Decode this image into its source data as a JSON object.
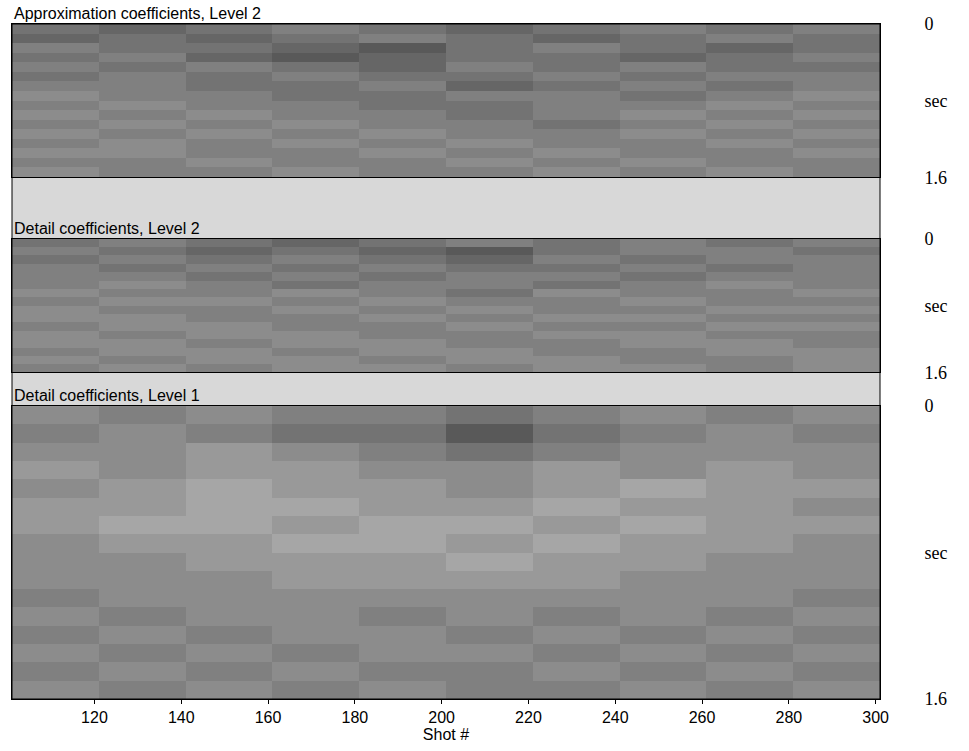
{
  "chart_data": {
    "type": "heatmap",
    "xlabel": "Shot #",
    "xlim": [
      101,
      301
    ],
    "xticks": [
      120,
      140,
      160,
      180,
      200,
      220,
      240,
      260,
      280,
      300
    ],
    "zlim": [
      0,
      1
    ],
    "grid": false,
    "panels": [
      {
        "title": "Approximation coefficients, Level 2",
        "ylim": [
          1.6,
          0
        ],
        "yticks": [
          0,
          {
            "value": 0.8,
            "label": "sec"
          },
          1.6
        ],
        "z": [
          [
            0.55,
            0.6,
            0.55,
            0.5,
            0.55,
            0.6,
            0.55,
            0.5,
            0.55,
            0.5
          ],
          [
            0.6,
            0.55,
            0.6,
            0.55,
            0.5,
            0.55,
            0.6,
            0.55,
            0.5,
            0.55
          ],
          [
            0.5,
            0.55,
            0.55,
            0.6,
            0.65,
            0.55,
            0.5,
            0.55,
            0.6,
            0.55
          ],
          [
            0.55,
            0.5,
            0.6,
            0.65,
            0.6,
            0.55,
            0.55,
            0.6,
            0.55,
            0.5
          ],
          [
            0.5,
            0.55,
            0.5,
            0.55,
            0.6,
            0.5,
            0.55,
            0.5,
            0.55,
            0.55
          ],
          [
            0.55,
            0.5,
            0.55,
            0.5,
            0.55,
            0.55,
            0.5,
            0.55,
            0.5,
            0.5
          ],
          [
            0.5,
            0.5,
            0.55,
            0.55,
            0.5,
            0.6,
            0.55,
            0.5,
            0.55,
            0.5
          ],
          [
            0.45,
            0.5,
            0.5,
            0.55,
            0.55,
            0.5,
            0.5,
            0.55,
            0.5,
            0.45
          ],
          [
            0.5,
            0.45,
            0.5,
            0.5,
            0.55,
            0.55,
            0.5,
            0.5,
            0.45,
            0.5
          ],
          [
            0.45,
            0.5,
            0.45,
            0.5,
            0.5,
            0.55,
            0.5,
            0.45,
            0.5,
            0.45
          ],
          [
            0.5,
            0.45,
            0.5,
            0.45,
            0.5,
            0.5,
            0.55,
            0.5,
            0.45,
            0.5
          ],
          [
            0.45,
            0.5,
            0.45,
            0.5,
            0.45,
            0.5,
            0.5,
            0.45,
            0.5,
            0.45
          ],
          [
            0.5,
            0.45,
            0.5,
            0.45,
            0.5,
            0.45,
            0.5,
            0.5,
            0.45,
            0.5
          ],
          [
            0.45,
            0.45,
            0.5,
            0.5,
            0.45,
            0.5,
            0.45,
            0.5,
            0.5,
            0.45
          ],
          [
            0.5,
            0.5,
            0.45,
            0.5,
            0.5,
            0.45,
            0.5,
            0.45,
            0.5,
            0.5
          ],
          [
            0.45,
            0.5,
            0.5,
            0.45,
            0.5,
            0.5,
            0.45,
            0.5,
            0.45,
            0.5
          ]
        ]
      },
      {
        "title": "Detail coefficients, Level 2",
        "ylim": [
          1.6,
          0
        ],
        "yticks": [
          0,
          {
            "value": 0.8,
            "label": "sec"
          },
          1.6
        ],
        "z": [
          [
            0.55,
            0.5,
            0.55,
            0.6,
            0.55,
            0.5,
            0.55,
            0.5,
            0.55,
            0.5
          ],
          [
            0.5,
            0.55,
            0.6,
            0.55,
            0.6,
            0.65,
            0.55,
            0.5,
            0.5,
            0.55
          ],
          [
            0.55,
            0.5,
            0.55,
            0.5,
            0.55,
            0.6,
            0.5,
            0.55,
            0.5,
            0.5
          ],
          [
            0.5,
            0.55,
            0.5,
            0.55,
            0.5,
            0.55,
            0.55,
            0.5,
            0.55,
            0.5
          ],
          [
            0.5,
            0.5,
            0.55,
            0.5,
            0.55,
            0.5,
            0.5,
            0.55,
            0.5,
            0.5
          ],
          [
            0.5,
            0.45,
            0.5,
            0.55,
            0.5,
            0.5,
            0.55,
            0.5,
            0.45,
            0.5
          ],
          [
            0.45,
            0.5,
            0.5,
            0.45,
            0.5,
            0.55,
            0.45,
            0.5,
            0.5,
            0.45
          ],
          [
            0.5,
            0.45,
            0.45,
            0.5,
            0.45,
            0.5,
            0.5,
            0.45,
            0.5,
            0.5
          ],
          [
            0.45,
            0.5,
            0.5,
            0.45,
            0.5,
            0.45,
            0.5,
            0.5,
            0.45,
            0.45
          ],
          [
            0.45,
            0.45,
            0.5,
            0.5,
            0.45,
            0.5,
            0.45,
            0.45,
            0.5,
            0.5
          ],
          [
            0.5,
            0.45,
            0.45,
            0.5,
            0.5,
            0.45,
            0.5,
            0.5,
            0.45,
            0.45
          ],
          [
            0.45,
            0.5,
            0.45,
            0.45,
            0.5,
            0.5,
            0.45,
            0.45,
            0.5,
            0.5
          ],
          [
            0.45,
            0.45,
            0.5,
            0.45,
            0.45,
            0.5,
            0.5,
            0.45,
            0.45,
            0.5
          ],
          [
            0.5,
            0.45,
            0.45,
            0.5,
            0.45,
            0.45,
            0.5,
            0.5,
            0.45,
            0.45
          ],
          [
            0.45,
            0.5,
            0.45,
            0.45,
            0.5,
            0.45,
            0.45,
            0.5,
            0.5,
            0.45
          ],
          [
            0.5,
            0.45,
            0.5,
            0.45,
            0.45,
            0.5,
            0.45,
            0.45,
            0.5,
            0.45
          ]
        ]
      },
      {
        "title": "Detail coefficients, Level 1",
        "ylim": [
          1.6,
          0
        ],
        "yticks": [
          0,
          {
            "value": 0.8,
            "label": "sec"
          },
          1.6
        ],
        "z": [
          [
            0.45,
            0.5,
            0.45,
            0.5,
            0.5,
            0.55,
            0.5,
            0.45,
            0.5,
            0.45
          ],
          [
            0.5,
            0.45,
            0.5,
            0.55,
            0.55,
            0.65,
            0.55,
            0.5,
            0.45,
            0.5
          ],
          [
            0.45,
            0.45,
            0.4,
            0.45,
            0.5,
            0.55,
            0.5,
            0.45,
            0.45,
            0.45
          ],
          [
            0.4,
            0.45,
            0.4,
            0.4,
            0.45,
            0.45,
            0.4,
            0.45,
            0.4,
            0.45
          ],
          [
            0.45,
            0.4,
            0.35,
            0.4,
            0.4,
            0.45,
            0.4,
            0.35,
            0.4,
            0.4
          ],
          [
            0.4,
            0.4,
            0.35,
            0.35,
            0.4,
            0.4,
            0.35,
            0.4,
            0.4,
            0.45
          ],
          [
            0.4,
            0.35,
            0.35,
            0.4,
            0.35,
            0.35,
            0.4,
            0.35,
            0.4,
            0.4
          ],
          [
            0.45,
            0.4,
            0.4,
            0.35,
            0.35,
            0.4,
            0.35,
            0.4,
            0.4,
            0.45
          ],
          [
            0.45,
            0.45,
            0.4,
            0.4,
            0.4,
            0.35,
            0.4,
            0.4,
            0.45,
            0.45
          ],
          [
            0.45,
            0.45,
            0.45,
            0.4,
            0.4,
            0.4,
            0.4,
            0.45,
            0.45,
            0.45
          ],
          [
            0.5,
            0.45,
            0.45,
            0.45,
            0.45,
            0.45,
            0.45,
            0.45,
            0.45,
            0.5
          ],
          [
            0.45,
            0.5,
            0.45,
            0.45,
            0.5,
            0.45,
            0.5,
            0.45,
            0.5,
            0.45
          ],
          [
            0.5,
            0.45,
            0.5,
            0.45,
            0.45,
            0.5,
            0.45,
            0.5,
            0.45,
            0.5
          ],
          [
            0.45,
            0.5,
            0.45,
            0.5,
            0.45,
            0.45,
            0.5,
            0.45,
            0.5,
            0.45
          ],
          [
            0.5,
            0.45,
            0.5,
            0.45,
            0.5,
            0.5,
            0.45,
            0.5,
            0.45,
            0.5
          ],
          [
            0.45,
            0.5,
            0.45,
            0.5,
            0.45,
            0.5,
            0.5,
            0.45,
            0.5,
            0.45
          ]
        ]
      }
    ]
  }
}
